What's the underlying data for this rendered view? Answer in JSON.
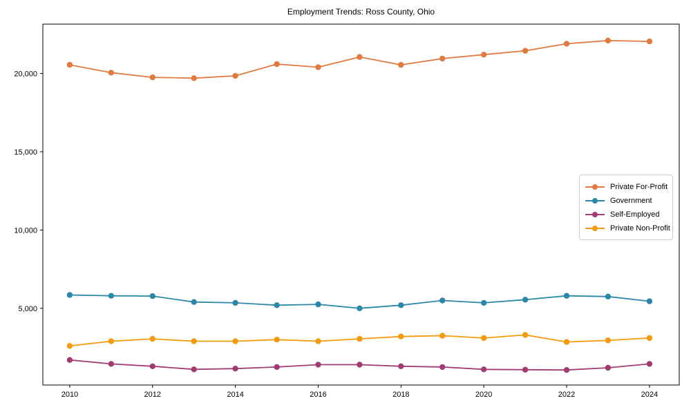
{
  "figure": {
    "title": "Employment Trends: Ross County, Ohio"
  },
  "chart_data": {
    "type": "line",
    "title": "Employment Trends: Ross County, Ohio",
    "xlabel": "",
    "ylabel": "",
    "x": [
      2010,
      2011,
      2012,
      2013,
      2014,
      2015,
      2016,
      2017,
      2018,
      2019,
      2020,
      2021,
      2022,
      2023,
      2024
    ],
    "series": [
      {
        "name": "Private For-Profit",
        "color": "#E2793F",
        "values": [
          20550,
          20050,
          19750,
          19700,
          19850,
          20600,
          20400,
          21050,
          20550,
          20950,
          21200,
          21450,
          21900,
          22100,
          22050
        ]
      },
      {
        "name": "Government",
        "color": "#2B87A8",
        "values": [
          5850,
          5800,
          5780,
          5400,
          5350,
          5200,
          5250,
          5000,
          5200,
          5500,
          5350,
          5550,
          5800,
          5750,
          5450
        ]
      },
      {
        "name": "Self-Employed",
        "color": "#A23B72",
        "values": [
          1700,
          1450,
          1300,
          1100,
          1150,
          1250,
          1400,
          1400,
          1300,
          1250,
          1100,
          1080,
          1060,
          1200,
          1450
        ]
      },
      {
        "name": "Private Non-Profit",
        "color": "#F39A0D",
        "values": [
          2600,
          2900,
          3050,
          2900,
          2900,
          3000,
          2900,
          3050,
          3200,
          3250,
          3100,
          3300,
          2850,
          2950,
          3100
        ]
      }
    ],
    "xticks": {
      "values": [
        2010,
        2012,
        2014,
        2016,
        2018,
        2020,
        2022,
        2024
      ],
      "labels": [
        "2010",
        "2012",
        "2014",
        "2016",
        "2018",
        "2020",
        "2022",
        "2024"
      ]
    },
    "yticks": {
      "values": [
        5000,
        10000,
        15000,
        20000
      ],
      "labels": [
        "5,000",
        "10,000",
        "15,000",
        "20,000"
      ]
    },
    "xlim": [
      2009.35,
      2024.72
    ],
    "ylim": [
      100,
      23150
    ],
    "grid": false,
    "legend_position": "center right"
  }
}
